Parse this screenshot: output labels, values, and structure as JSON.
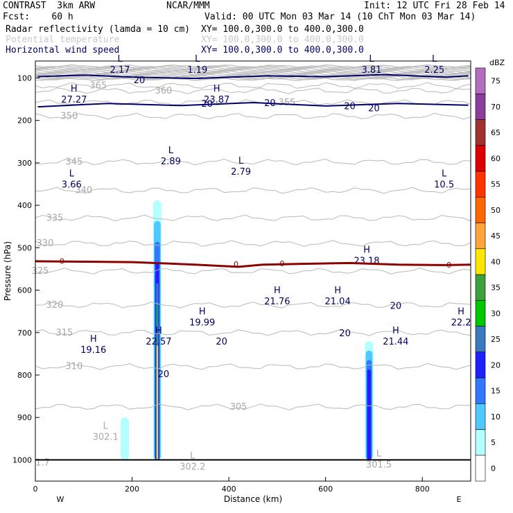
{
  "header": {
    "model": "CONTRAST  3km ARW",
    "org": "NCAR/MMM",
    "init": "Init: 12 UTC Fri 28 Feb 14",
    "fcst": "Fcst:    60 h",
    "valid": "Valid: 00 UTC Mon 03 Mar 14 (10 ChT Mon 03 Mar 14)",
    "fields": [
      {
        "name": "Radar reflectivity (lamda = 10 cm)",
        "xy": "XY= 100.0,300.0 to 400.0,300.0",
        "color": "#000000"
      },
      {
        "name": "Potential temperature",
        "xy": "XY= 100.0,300.0 to 400.0,300.0",
        "color": "#c8c8c8"
      },
      {
        "name": "Horizontal wind speed",
        "xy": "XY= 100.0,300.0 to 400.0,300.0",
        "color": "#000066"
      }
    ]
  },
  "chart_data": {
    "type": "cross-section",
    "xlabel": "Distance (km)",
    "ylabel": "Pressure (hPa)",
    "xlim": [
      0,
      900
    ],
    "ylim": [
      1050,
      60
    ],
    "x_ticks": [
      0,
      200,
      400,
      600,
      800
    ],
    "y_ticks": [
      100,
      200,
      300,
      400,
      500,
      600,
      700,
      800,
      900,
      1000
    ],
    "x_end_labels": {
      "left": "W",
      "right": "E"
    },
    "colorbar": {
      "unit": "dBZ",
      "levels": [
        "0",
        "5",
        "10",
        "15",
        "20",
        "25",
        "30",
        "35",
        "40",
        "45",
        "50",
        "55",
        "60",
        "65",
        "70",
        "75"
      ],
      "colors": [
        "#ffffff",
        "#b4ffff",
        "#4ec8ff",
        "#3278ff",
        "#2020ff",
        "#3a7abe",
        "#00c800",
        "#3ca03c",
        "#ffe600",
        "#ffa53c",
        "#ff6600",
        "#ff3300",
        "#dc0000",
        "#a03232",
        "#8c3c9c",
        "#b46ebe"
      ]
    },
    "theta_contours": [
      {
        "label": "365",
        "p": 118,
        "lx": 130
      },
      {
        "label": "360",
        "p": 130,
        "lx": 265
      },
      {
        "label": "355",
        "p": 158,
        "lx": 520
      },
      {
        "label": "350",
        "p": 190,
        "lx": 70
      },
      {
        "label": "345",
        "p": 298,
        "lx": 80
      },
      {
        "label": "340",
        "p": 365,
        "lx": 100
      },
      {
        "label": "335",
        "p": 430,
        "lx": 40
      },
      {
        "label": "330",
        "p": 490,
        "lx": 20
      },
      {
        "label": "325",
        "p": 555,
        "lx": 10
      },
      {
        "label": "320",
        "p": 635,
        "lx": 40
      },
      {
        "label": "315",
        "p": 700,
        "lx": 60
      },
      {
        "label": "310",
        "p": 780,
        "lx": 80
      },
      {
        "label": "305",
        "p": 875,
        "lx": 420
      }
    ],
    "theta_extrema": [
      {
        "type": "L",
        "value": "302.1",
        "x": 145,
        "p": 940
      },
      {
        "type": "L",
        "value": "302.2",
        "x": 325,
        "p": 1010
      },
      {
        "type": "L",
        "value": "301.5",
        "x": 710,
        "p": 1005
      },
      {
        "type": "",
        "value": "1.7",
        "x": 15,
        "p": 1000
      }
    ],
    "wind_contours": [
      {
        "label": "20",
        "x": [
          5,
          100,
          200,
          330,
          480,
          600,
          720,
          850,
          895
        ],
        "p": [
          97,
          93,
          98,
          101,
          95,
          97,
          92,
          98,
          95
        ]
      },
      {
        "label": "20",
        "x": [
          5,
          150,
          300,
          450,
          600,
          750,
          895
        ],
        "p": [
          168,
          160,
          165,
          158,
          166,
          160,
          164
        ]
      }
    ],
    "wind_extrema": [
      {
        "type": "L",
        "value": "2.17",
        "x": 175,
        "p": 75
      },
      {
        "type": "L",
        "value": "1.19",
        "x": 335,
        "p": 75
      },
      {
        "type": "L",
        "value": "3.81",
        "x": 695,
        "p": 75
      },
      {
        "type": "L",
        "value": "2.25",
        "x": 825,
        "p": 75
      },
      {
        "type": "H",
        "value": "27.27",
        "x": 80,
        "p": 145
      },
      {
        "type": "H",
        "value": "23.87",
        "x": 375,
        "p": 145
      },
      {
        "type": "L",
        "value": "2.89",
        "x": 280,
        "p": 290
      },
      {
        "type": "L",
        "value": "2.79",
        "x": 425,
        "p": 315
      },
      {
        "type": "L",
        "value": "3.66",
        "x": 75,
        "p": 345
      },
      {
        "type": "L",
        "value": "10.5",
        "x": 845,
        "p": 345
      },
      {
        "type": "H",
        "value": "23.18",
        "x": 685,
        "p": 525
      },
      {
        "type": "H",
        "value": "21.76",
        "x": 500,
        "p": 620
      },
      {
        "type": "H",
        "value": "21.04",
        "x": 625,
        "p": 620
      },
      {
        "type": "H",
        "value": "19.99",
        "x": 345,
        "p": 670
      },
      {
        "type": "H",
        "value": "22.2",
        "x": 880,
        "p": 670
      },
      {
        "type": "H",
        "value": "22.57",
        "x": 255,
        "p": 715
      },
      {
        "type": "H",
        "value": "21.44",
        "x": 745,
        "p": 715
      },
      {
        "type": "H",
        "value": "19.16",
        "x": 120,
        "p": 735
      }
    ],
    "wind_labels": [
      {
        "label": "20",
        "x": 215,
        "p": 104
      },
      {
        "label": "20",
        "x": 355,
        "p": 160
      },
      {
        "label": "20",
        "x": 485,
        "p": 158
      },
      {
        "label": "20",
        "x": 650,
        "p": 165
      },
      {
        "label": "20",
        "x": 700,
        "p": 170
      },
      {
        "label": "20",
        "x": 385,
        "p": 720
      },
      {
        "label": "20",
        "x": 640,
        "p": 700
      },
      {
        "label": "20",
        "x": 745,
        "p": 636
      },
      {
        "label": "20",
        "x": 265,
        "p": 797
      }
    ],
    "freezing_level": {
      "label": "0",
      "p": [
        532,
        533,
        534,
        537,
        540,
        545,
        540,
        538,
        536,
        540,
        541,
        540
      ],
      "x": [
        0,
        100,
        200,
        270,
        330,
        420,
        470,
        550,
        650,
        750,
        850,
        900
      ]
    },
    "reflectivity_cells": [
      {
        "x": 252,
        "top": 388,
        "bottom": 1000,
        "max_dbz": 40
      },
      {
        "x": 690,
        "top": 720,
        "bottom": 1000,
        "max_dbz": 20
      },
      {
        "x": 185,
        "top": 900,
        "bottom": 1000,
        "max_dbz": 5
      }
    ]
  }
}
